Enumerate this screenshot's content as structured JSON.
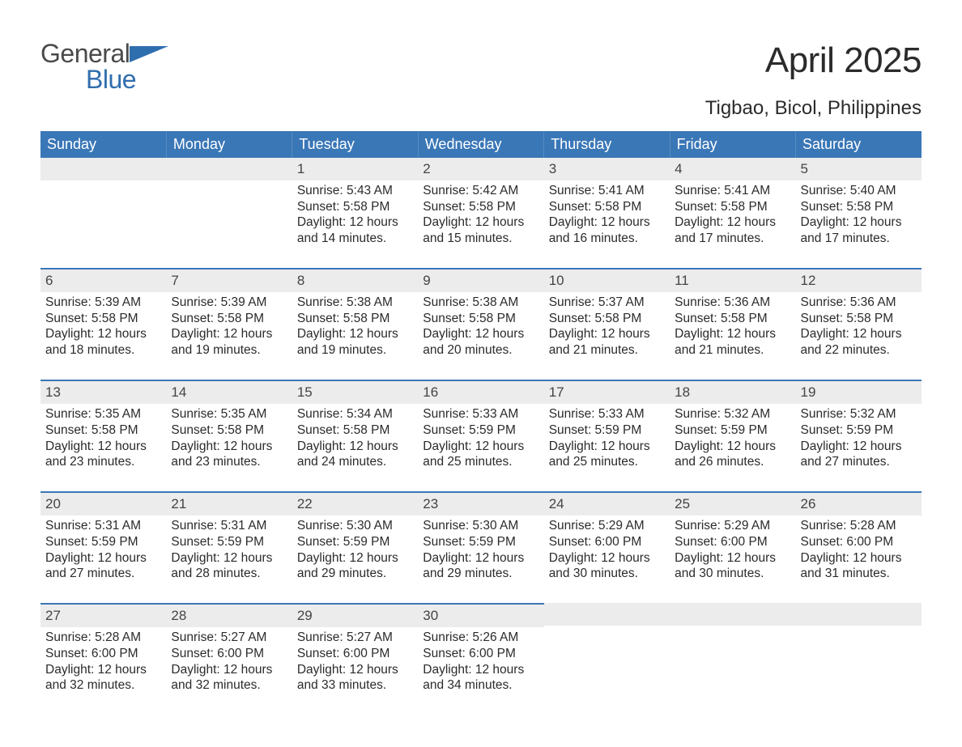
{
  "logo": {
    "word1": "General",
    "word2": "Blue"
  },
  "title": "April 2025",
  "subtitle": "Tigbao, Bicol, Philippines",
  "colors": {
    "header_bg": "#3a77b7",
    "header_text": "#ffffff",
    "daynum_bg": "#ececec",
    "daynum_border": "#3a77b7",
    "body_text": "#2b2b2b",
    "logo_gray": "#4a4a4a",
    "logo_blue": "#2f6eae",
    "page_bg": "#ffffff"
  },
  "typography": {
    "title_fontsize": 44,
    "subtitle_fontsize": 24,
    "header_fontsize": 18,
    "daynum_fontsize": 17,
    "body_fontsize": 15.5,
    "logo_fontsize": 32
  },
  "layout": {
    "columns": 7,
    "weeks": 5,
    "week_start": "Sunday"
  },
  "weekdays": [
    "Sunday",
    "Monday",
    "Tuesday",
    "Wednesday",
    "Thursday",
    "Friday",
    "Saturday"
  ],
  "weeks": [
    [
      null,
      null,
      {
        "day": "1",
        "sunrise": "5:43 AM",
        "sunset": "5:58 PM",
        "daylight": "12 hours and 14 minutes."
      },
      {
        "day": "2",
        "sunrise": "5:42 AM",
        "sunset": "5:58 PM",
        "daylight": "12 hours and 15 minutes."
      },
      {
        "day": "3",
        "sunrise": "5:41 AM",
        "sunset": "5:58 PM",
        "daylight": "12 hours and 16 minutes."
      },
      {
        "day": "4",
        "sunrise": "5:41 AM",
        "sunset": "5:58 PM",
        "daylight": "12 hours and 17 minutes."
      },
      {
        "day": "5",
        "sunrise": "5:40 AM",
        "sunset": "5:58 PM",
        "daylight": "12 hours and 17 minutes."
      }
    ],
    [
      {
        "day": "6",
        "sunrise": "5:39 AM",
        "sunset": "5:58 PM",
        "daylight": "12 hours and 18 minutes."
      },
      {
        "day": "7",
        "sunrise": "5:39 AM",
        "sunset": "5:58 PM",
        "daylight": "12 hours and 19 minutes."
      },
      {
        "day": "8",
        "sunrise": "5:38 AM",
        "sunset": "5:58 PM",
        "daylight": "12 hours and 19 minutes."
      },
      {
        "day": "9",
        "sunrise": "5:38 AM",
        "sunset": "5:58 PM",
        "daylight": "12 hours and 20 minutes."
      },
      {
        "day": "10",
        "sunrise": "5:37 AM",
        "sunset": "5:58 PM",
        "daylight": "12 hours and 21 minutes."
      },
      {
        "day": "11",
        "sunrise": "5:36 AM",
        "sunset": "5:58 PM",
        "daylight": "12 hours and 21 minutes."
      },
      {
        "day": "12",
        "sunrise": "5:36 AM",
        "sunset": "5:58 PM",
        "daylight": "12 hours and 22 minutes."
      }
    ],
    [
      {
        "day": "13",
        "sunrise": "5:35 AM",
        "sunset": "5:58 PM",
        "daylight": "12 hours and 23 minutes."
      },
      {
        "day": "14",
        "sunrise": "5:35 AM",
        "sunset": "5:58 PM",
        "daylight": "12 hours and 23 minutes."
      },
      {
        "day": "15",
        "sunrise": "5:34 AM",
        "sunset": "5:58 PM",
        "daylight": "12 hours and 24 minutes."
      },
      {
        "day": "16",
        "sunrise": "5:33 AM",
        "sunset": "5:59 PM",
        "daylight": "12 hours and 25 minutes."
      },
      {
        "day": "17",
        "sunrise": "5:33 AM",
        "sunset": "5:59 PM",
        "daylight": "12 hours and 25 minutes."
      },
      {
        "day": "18",
        "sunrise": "5:32 AM",
        "sunset": "5:59 PM",
        "daylight": "12 hours and 26 minutes."
      },
      {
        "day": "19",
        "sunrise": "5:32 AM",
        "sunset": "5:59 PM",
        "daylight": "12 hours and 27 minutes."
      }
    ],
    [
      {
        "day": "20",
        "sunrise": "5:31 AM",
        "sunset": "5:59 PM",
        "daylight": "12 hours and 27 minutes."
      },
      {
        "day": "21",
        "sunrise": "5:31 AM",
        "sunset": "5:59 PM",
        "daylight": "12 hours and 28 minutes."
      },
      {
        "day": "22",
        "sunrise": "5:30 AM",
        "sunset": "5:59 PM",
        "daylight": "12 hours and 29 minutes."
      },
      {
        "day": "23",
        "sunrise": "5:30 AM",
        "sunset": "5:59 PM",
        "daylight": "12 hours and 29 minutes."
      },
      {
        "day": "24",
        "sunrise": "5:29 AM",
        "sunset": "6:00 PM",
        "daylight": "12 hours and 30 minutes."
      },
      {
        "day": "25",
        "sunrise": "5:29 AM",
        "sunset": "6:00 PM",
        "daylight": "12 hours and 30 minutes."
      },
      {
        "day": "26",
        "sunrise": "5:28 AM",
        "sunset": "6:00 PM",
        "daylight": "12 hours and 31 minutes."
      }
    ],
    [
      {
        "day": "27",
        "sunrise": "5:28 AM",
        "sunset": "6:00 PM",
        "daylight": "12 hours and 32 minutes."
      },
      {
        "day": "28",
        "sunrise": "5:27 AM",
        "sunset": "6:00 PM",
        "daylight": "12 hours and 32 minutes."
      },
      {
        "day": "29",
        "sunrise": "5:27 AM",
        "sunset": "6:00 PM",
        "daylight": "12 hours and 33 minutes."
      },
      {
        "day": "30",
        "sunrise": "5:26 AM",
        "sunset": "6:00 PM",
        "daylight": "12 hours and 34 minutes."
      },
      null,
      null,
      null
    ]
  ],
  "labels": {
    "sunrise": "Sunrise: ",
    "sunset": "Sunset: ",
    "daylight": "Daylight: "
  }
}
